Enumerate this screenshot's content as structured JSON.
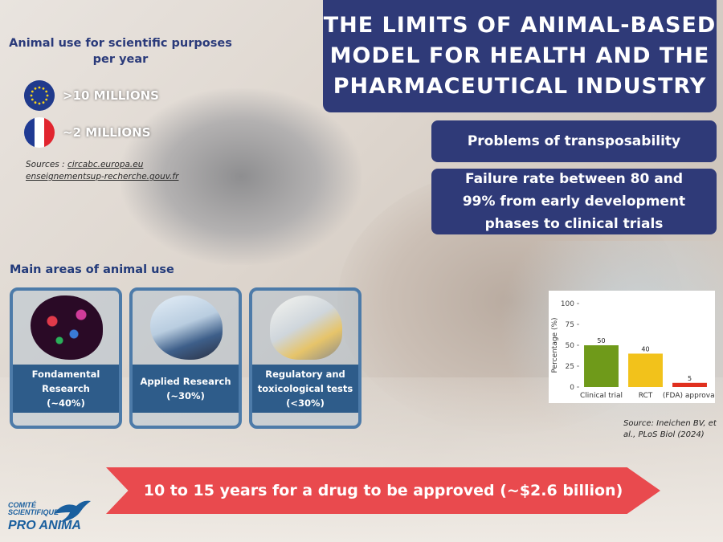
{
  "header": {
    "title": "THE LIMITS OF ANIMAL-BASED MODEL FOR HEALTH AND THE PHARMACEUTICAL INDUSTRY"
  },
  "problems": {
    "transposability": "Problems of transposability",
    "failure_rate": "Failure rate between 80 and 99% from early development phases to clinical trials"
  },
  "animal_use": {
    "title": "Animal use for scientific purposes per year",
    "eu_value": ">10 MILLIONS",
    "fr_value": "~2 MILLIONS",
    "sources_label": "Sources :",
    "source1": "circabc.europa.eu",
    "source2": "enseignementsup-recherche.gouv.fr"
  },
  "main_areas": {
    "title": "Main areas of animal use",
    "cards": [
      {
        "label": "Fondamental Research",
        "share": "(~40%)"
      },
      {
        "label": "Applied Research",
        "share": "(~30%)"
      },
      {
        "label": "Regulatory and toxicological tests",
        "share": "(<30%)"
      }
    ]
  },
  "chart_data": {
    "type": "bar",
    "categories": [
      "Clinical trial",
      "RCT",
      "(FDA) approval"
    ],
    "values": [
      50,
      40,
      5
    ],
    "data_labels": [
      "50",
      "40",
      "5"
    ],
    "colors": [
      "#6f9a1a",
      "#f2c21b",
      "#e0301e"
    ],
    "title": "",
    "xlabel": "",
    "ylabel": "Percentage (%)",
    "ylim": [
      0,
      100
    ],
    "yticks": [
      0,
      25,
      50,
      75,
      100
    ],
    "grid": false
  },
  "chart_source": "Source: Ineichen BV, et al., PLoS Biol (2024)",
  "banner": "10 to 15 years for a drug to be approved (~$2.6 billion)",
  "logo": {
    "line1": "COMITÉ",
    "line2": "SCIENTIFIQUE",
    "line3": "PRO ANIMA"
  },
  "colors": {
    "navy": "#2f3a78",
    "card_blue": "#2e5c8a",
    "banner_red": "#e94a4e"
  }
}
